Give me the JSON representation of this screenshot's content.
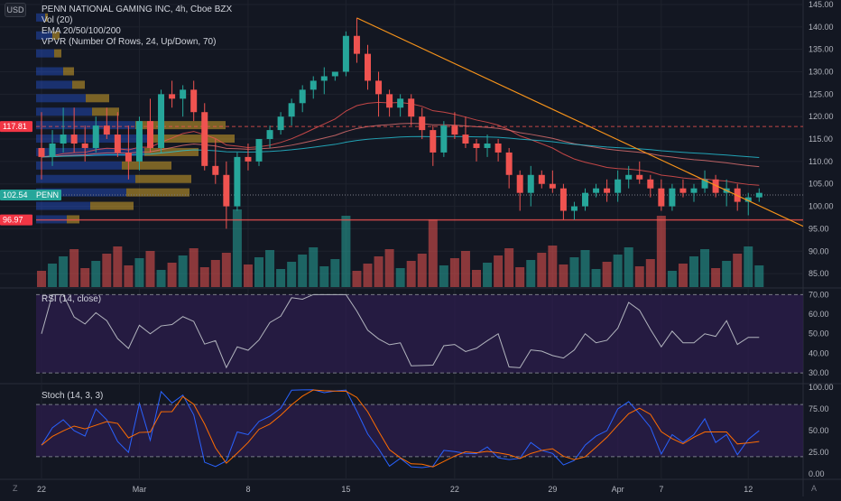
{
  "header": {
    "currency": "USD",
    "title": "PENN NATIONAL GAMING INC, 4h, Cboe BZX",
    "vol_label": "Vol (20)",
    "ema_label": "EMA 20/50/100/200",
    "vpvr_label": "VPVR (Number Of Rows, 24, Up/Down, 70)"
  },
  "price_axis": {
    "ticks": [
      85,
      90,
      95,
      100,
      105,
      110,
      115,
      120,
      125,
      130,
      135,
      140,
      145
    ],
    "tick_labels": [
      "85.00",
      "90.00",
      "95.00",
      "100.00",
      "105.00",
      "110.00",
      "115.00",
      "120.00",
      "125.00",
      "130.00",
      "135.00",
      "140.00",
      "145.00"
    ],
    "badges": [
      {
        "label": "117.81",
        "value": 117.81,
        "color": "#f23645"
      },
      {
        "label": "102.54",
        "value": 102.54,
        "color": "#26a69a",
        "ticker": "PENN"
      },
      {
        "label": "96.97",
        "value": 96.97,
        "color": "#f23645"
      }
    ]
  },
  "rsi": {
    "title": "RSI (14, close)",
    "ticks": [
      30,
      40,
      50,
      60,
      70
    ],
    "tick_labels": [
      "30.00",
      "40.00",
      "50.00",
      "60.00",
      "70.00"
    ]
  },
  "stoch": {
    "title": "Stoch (14, 3, 3)",
    "ticks": [
      0,
      25,
      50,
      75,
      100
    ],
    "tick_labels": [
      "0.00",
      "25.00",
      "50.00",
      "75.00",
      "100.00"
    ]
  },
  "time_axis": {
    "labels": [
      "22",
      "Mar",
      "8",
      "15",
      "22",
      "29",
      "Apr",
      "7",
      "12"
    ]
  },
  "colors": {
    "up": "#26a69a",
    "down": "#ef5350",
    "trendline": "#f7931a",
    "ema20": "#ef5350",
    "ema50": "#e57373",
    "ema100": "#26c6da",
    "rsi_line": "#b2b5be",
    "stoch_k": "#2962ff",
    "stoch_d": "#ff6d00",
    "band": "#2b1d4a"
  },
  "icons": {
    "bottom_left": "Z",
    "bottom_right": "A"
  },
  "chart_data": {
    "type": "candlestick",
    "series": [
      {
        "name": "PENN 4h",
        "ohlc": [
          [
            113,
            121,
            106,
            111
          ],
          [
            111,
            117,
            109,
            114
          ],
          [
            114,
            122,
            112,
            116
          ],
          [
            116,
            122,
            112,
            114
          ],
          [
            114,
            118,
            110,
            113
          ],
          [
            113,
            120,
            112,
            118
          ],
          [
            118,
            122,
            115,
            116
          ],
          [
            116,
            121,
            111,
            112
          ],
          [
            112,
            118,
            106,
            110
          ],
          [
            110,
            120,
            108,
            119
          ],
          [
            119,
            124,
            112,
            113
          ],
          [
            113,
            126,
            112,
            125
          ],
          [
            125,
            128,
            122,
            124
          ],
          [
            124,
            127,
            120,
            126
          ],
          [
            126,
            128,
            119,
            121
          ],
          [
            121,
            123,
            108,
            109
          ],
          [
            109,
            115,
            105,
            107
          ],
          [
            107,
            110,
            95,
            100
          ],
          [
            100,
            112,
            99,
            111
          ],
          [
            111,
            114,
            108,
            110
          ],
          [
            110,
            115,
            109,
            115
          ],
          [
            115,
            118,
            113,
            117
          ],
          [
            117,
            121,
            116,
            120
          ],
          [
            120,
            124,
            118,
            123
          ],
          [
            123,
            127,
            121,
            126
          ],
          [
            126,
            129,
            124,
            128
          ],
          [
            128,
            131,
            125,
            129
          ],
          [
            129,
            130,
            128,
            130
          ],
          [
            130,
            139,
            129,
            138
          ],
          [
            138,
            142,
            132,
            134
          ],
          [
            134,
            136,
            126,
            128
          ],
          [
            128,
            130,
            120,
            125
          ],
          [
            125,
            126,
            120,
            122
          ],
          [
            122,
            125,
            120,
            124
          ],
          [
            124,
            125,
            118,
            120
          ],
          [
            120,
            122,
            115,
            117
          ],
          [
            117,
            118,
            109,
            112
          ],
          [
            112,
            119,
            111,
            118
          ],
          [
            118,
            121,
            115,
            116
          ],
          [
            116,
            120,
            113,
            114
          ],
          [
            114,
            115,
            110,
            113
          ],
          [
            113,
            116,
            111,
            114
          ],
          [
            114,
            115,
            110,
            112
          ],
          [
            112,
            113,
            104,
            107
          ],
          [
            107,
            108,
            99,
            103
          ],
          [
            103,
            109,
            100,
            107
          ],
          [
            107,
            108,
            104,
            105
          ],
          [
            105,
            108,
            103,
            104
          ],
          [
            104,
            105,
            97,
            99
          ],
          [
            99,
            101,
            97,
            100
          ],
          [
            100,
            104,
            99,
            103
          ],
          [
            103,
            105,
            102,
            104
          ],
          [
            104,
            106,
            101,
            103
          ],
          [
            103,
            108,
            101,
            106
          ],
          [
            106,
            109,
            104,
            107
          ],
          [
            107,
            110,
            105,
            106
          ],
          [
            106,
            107,
            102,
            104
          ],
          [
            104,
            106,
            99,
            100
          ],
          [
            100,
            105,
            99,
            104
          ],
          [
            104,
            106,
            102,
            103
          ],
          [
            103,
            105,
            101,
            104
          ],
          [
            104,
            108,
            103,
            106
          ],
          [
            106,
            107,
            102,
            103
          ],
          [
            103,
            106,
            100,
            104
          ],
          [
            104,
            105,
            99,
            101
          ],
          [
            101,
            103,
            98,
            102
          ],
          [
            102,
            104,
            101,
            103
          ]
        ]
      }
    ],
    "ylim": [
      82,
      146
    ],
    "trendline": {
      "from": [
        29,
        142
      ],
      "to": [
        67,
        99
      ]
    },
    "horizontal_levels": [
      117.81,
      96.97
    ],
    "rsi_ylim": [
      25,
      72
    ],
    "stoch_ylim": [
      -5,
      102
    ]
  }
}
